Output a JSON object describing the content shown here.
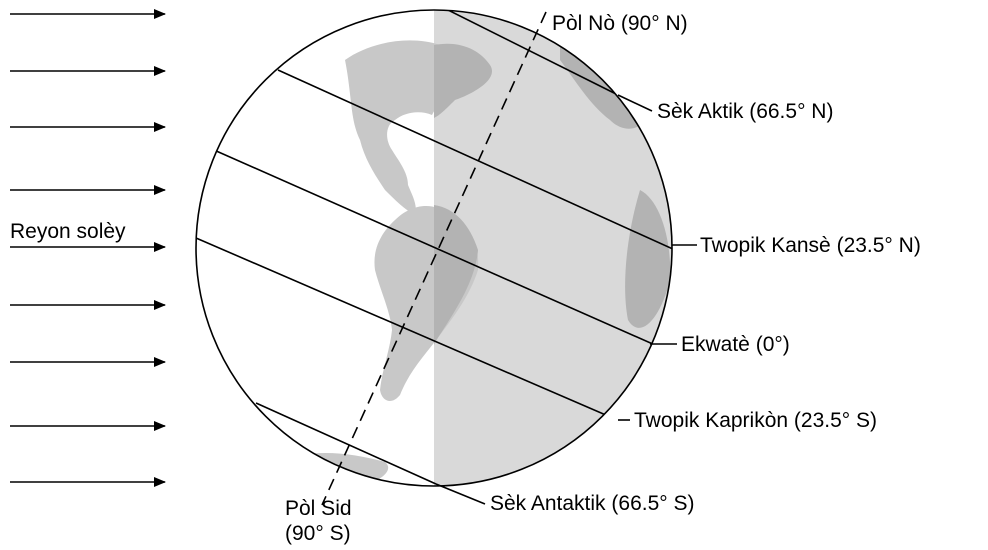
{
  "sun_rays_label": "Reyon solèy",
  "north_pole": "Pòl Nò (90° N)",
  "arctic_circle": "Sèk Aktik (66.5° N)",
  "tropic_cancer": "Twopik Kansè (23.5° N)",
  "equator": "Ekwatè (0°)",
  "tropic_capricorn": "Twopik Kaprikòn (23.5° S)",
  "antarctic_circle": "Sèk Antaktik (66.5° S)",
  "south_pole_line1": "Pòl Sid",
  "south_pole_line2": "(90° S)",
  "colors": {
    "land": "#c8c8c8",
    "night": "#d9d9d9",
    "night_land": "#b3b3b3",
    "line": "#000000"
  }
}
